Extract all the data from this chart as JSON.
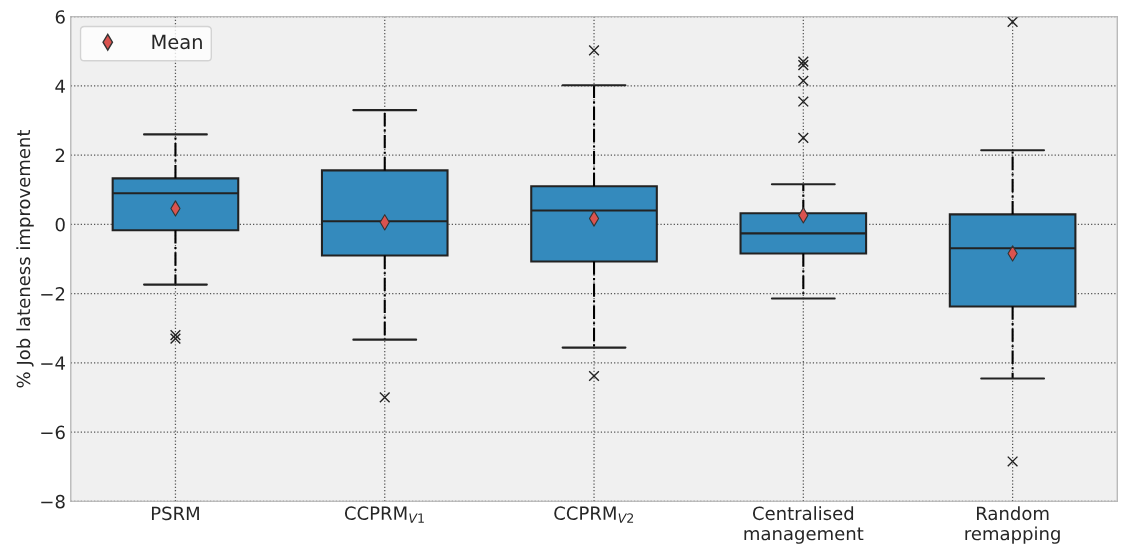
{
  "chart_data": {
    "type": "box",
    "categories": [
      "PSRM",
      "CCPRM$_{V1}$",
      "CCPRM$_{V2}$",
      "Centralised\nmanagement",
      "Random\nremapping"
    ],
    "ylabel": "% Job lateness improvement",
    "ylim": [
      -8,
      6
    ],
    "yticks": [
      -8,
      -6,
      -4,
      -2,
      0,
      2,
      4,
      6
    ],
    "grid": true,
    "legend": "top left",
    "series": [
      {
        "color": "#348abd",
        "boxes": [
          {
            "low": -1.74,
            "q1": -0.17,
            "median": 0.9,
            "q3": 1.33,
            "high": 2.6,
            "outliers": [
              -3.2,
              -3.3
            ]
          },
          {
            "low": -3.33,
            "q1": -0.9,
            "median": 0.09,
            "q3": 1.56,
            "high": 3.3,
            "outliers": [
              -5.0
            ]
          },
          {
            "low": -3.56,
            "q1": -1.07,
            "median": 0.4,
            "q3": 1.1,
            "high": 4.02,
            "outliers": [
              5.03,
              -4.38
            ]
          },
          {
            "low": -2.14,
            "q1": -0.84,
            "median": -0.26,
            "q3": 0.32,
            "high": 1.16,
            "outliers": [
              4.7,
              4.6,
              4.15,
              3.55,
              2.5
            ]
          },
          {
            "low": -4.45,
            "q1": -2.37,
            "median": -0.69,
            "q3": 0.29,
            "high": 2.14,
            "outliers": [
              5.85,
              -6.85
            ]
          }
        ]
      },
      {
        "type": "scatter",
        "name": "Mean",
        "color": "#d9534f",
        "marker": "diamond",
        "x": [
          "PSRM",
          "CCPRM$_{V1}$",
          "CCPRM$_{V2}$",
          "Centralised\nmanagement",
          "Random\nremapping"
        ],
        "values": [
          0.46,
          0.06,
          0.17,
          0.26,
          -0.84
        ]
      }
    ]
  }
}
